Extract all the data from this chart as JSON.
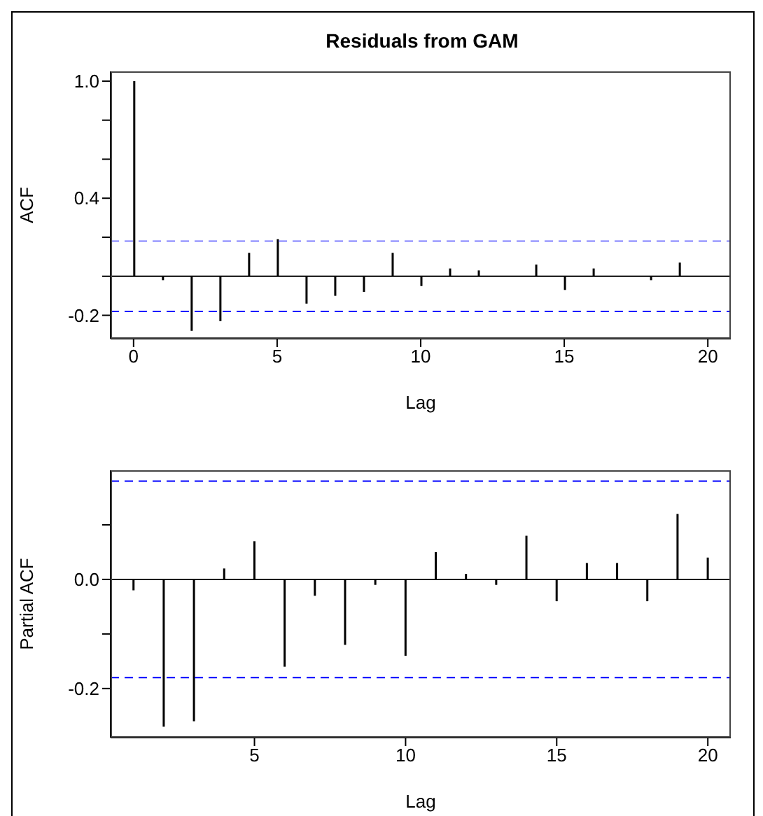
{
  "chart_data": [
    {
      "type": "bar",
      "title": "Residuals from GAM",
      "xlabel": "Lag",
      "ylabel": "ACF",
      "x": [
        0,
        1,
        2,
        3,
        4,
        5,
        6,
        7,
        8,
        9,
        10,
        11,
        12,
        13,
        14,
        15,
        16,
        17,
        18,
        19,
        20
      ],
      "values": [
        1.0,
        -0.02,
        -0.28,
        -0.23,
        0.12,
        0.19,
        -0.14,
        -0.1,
        -0.08,
        0.12,
        -0.05,
        0.04,
        0.03,
        0.0,
        0.06,
        -0.07,
        0.04,
        0.0,
        -0.02,
        0.07,
        0.0
      ],
      "color": "#000000",
      "xlim": [
        -0.8,
        20.8
      ],
      "xticks": [
        0,
        5,
        10,
        15,
        20
      ],
      "ylim": [
        -0.32,
        1.05
      ],
      "yticks": [
        -0.2,
        {
          "value": 0,
          "label": null
        },
        {
          "value": 0.2,
          "label": null
        },
        0.4,
        {
          "value": 0.6,
          "label": null
        },
        {
          "value": 0.8,
          "label": null
        },
        {
          "value": 1,
          "label": "1.0"
        }
      ],
      "ref_lines": [
        {
          "axis": "y",
          "value": 0.18,
          "color": "#7f7fff",
          "line_style": "dashed"
        },
        {
          "axis": "y",
          "value": -0.18,
          "color": "#0000ff",
          "line_style": "dashed"
        },
        {
          "axis": "y",
          "value": 0,
          "color": "#000000",
          "line_style": "solid"
        }
      ]
    },
    {
      "type": "bar",
      "xlabel": "Lag",
      "ylabel": "Partial ACF",
      "x": [
        1,
        2,
        3,
        4,
        5,
        6,
        7,
        8,
        9,
        10,
        11,
        12,
        13,
        14,
        15,
        16,
        17,
        18,
        19,
        20
      ],
      "values": [
        -0.02,
        -0.27,
        -0.26,
        0.02,
        0.07,
        -0.16,
        -0.03,
        -0.12,
        -0.01,
        -0.14,
        0.05,
        0.01,
        -0.01,
        0.08,
        -0.04,
        0.03,
        0.03,
        -0.04,
        0.12,
        0.04
      ],
      "color": "#000000",
      "xlim": [
        0.24,
        20.76
      ],
      "xticks": [
        5,
        10,
        15,
        20
      ],
      "ylim": [
        -0.29,
        0.2
      ],
      "yticks": [
        -0.2,
        {
          "value": -0.1,
          "label": null
        },
        {
          "value": 0,
          "label": "0.0"
        },
        {
          "value": 0.1,
          "label": null
        }
      ],
      "ref_lines": [
        {
          "axis": "y",
          "value": 0.18,
          "color": "#0000ff",
          "line_style": "dashed"
        },
        {
          "axis": "y",
          "value": -0.18,
          "color": "#0000ff",
          "line_style": "dashed"
        },
        {
          "axis": "y",
          "value": 0,
          "color": "#000000",
          "line_style": "solid"
        }
      ]
    }
  ]
}
